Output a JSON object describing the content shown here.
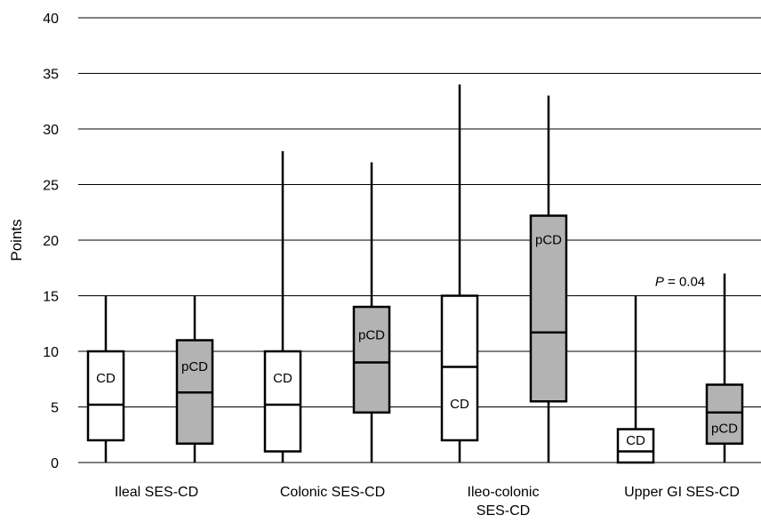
{
  "chart_data": {
    "type": "boxplot",
    "ylabel": "Points",
    "ylim": [
      0,
      40
    ],
    "yticks": [
      0,
      5,
      10,
      15,
      20,
      25,
      30,
      35,
      40
    ],
    "grid": "horizontal",
    "categories": [
      {
        "label_lines": [
          "Ileal SES-CD"
        ]
      },
      {
        "label_lines": [
          "Colonic SES-CD"
        ]
      },
      {
        "label_lines": [
          "Ileo-colonic",
          "SES-CD"
        ]
      },
      {
        "label_lines": [
          "Upper GI SES-CD"
        ]
      }
    ],
    "series": [
      {
        "name": "CD",
        "fill": "#ffffff"
      },
      {
        "name": "pCD",
        "fill": "#b3b3b3"
      }
    ],
    "boxes": [
      {
        "category": 0,
        "series": 0,
        "label": "CD",
        "min": 0,
        "q1": 2,
        "median": 5.2,
        "q3": 10,
        "max": 15
      },
      {
        "category": 0,
        "series": 1,
        "label": "pCD",
        "min": 0,
        "q1": 1.7,
        "median": 6.3,
        "q3": 11,
        "max": 15
      },
      {
        "category": 1,
        "series": 0,
        "label": "CD",
        "min": 0,
        "q1": 1,
        "median": 5.2,
        "q3": 10,
        "max": 28
      },
      {
        "category": 1,
        "series": 1,
        "label": "pCD",
        "min": 0,
        "q1": 4.5,
        "median": 9,
        "q3": 14,
        "max": 27
      },
      {
        "category": 2,
        "series": 0,
        "label": "CD",
        "min": 0,
        "q1": 2,
        "median": 8.6,
        "q3": 15,
        "max": 34
      },
      {
        "category": 2,
        "series": 1,
        "label": "pCD",
        "min": 0,
        "q1": 5.5,
        "median": 11.7,
        "q3": 22.2,
        "max": 33
      },
      {
        "category": 3,
        "series": 0,
        "label": "CD",
        "min": 0,
        "q1": 0,
        "median": 1,
        "q3": 3,
        "max": 15
      },
      {
        "category": 3,
        "series": 1,
        "label": "pCD",
        "min": 0,
        "q1": 1.7,
        "median": 4.5,
        "q3": 7,
        "max": 17
      }
    ],
    "annotations": [
      {
        "category": 3,
        "p_symbol": "P",
        "rest": " = 0.04",
        "y": 16.3
      }
    ]
  }
}
